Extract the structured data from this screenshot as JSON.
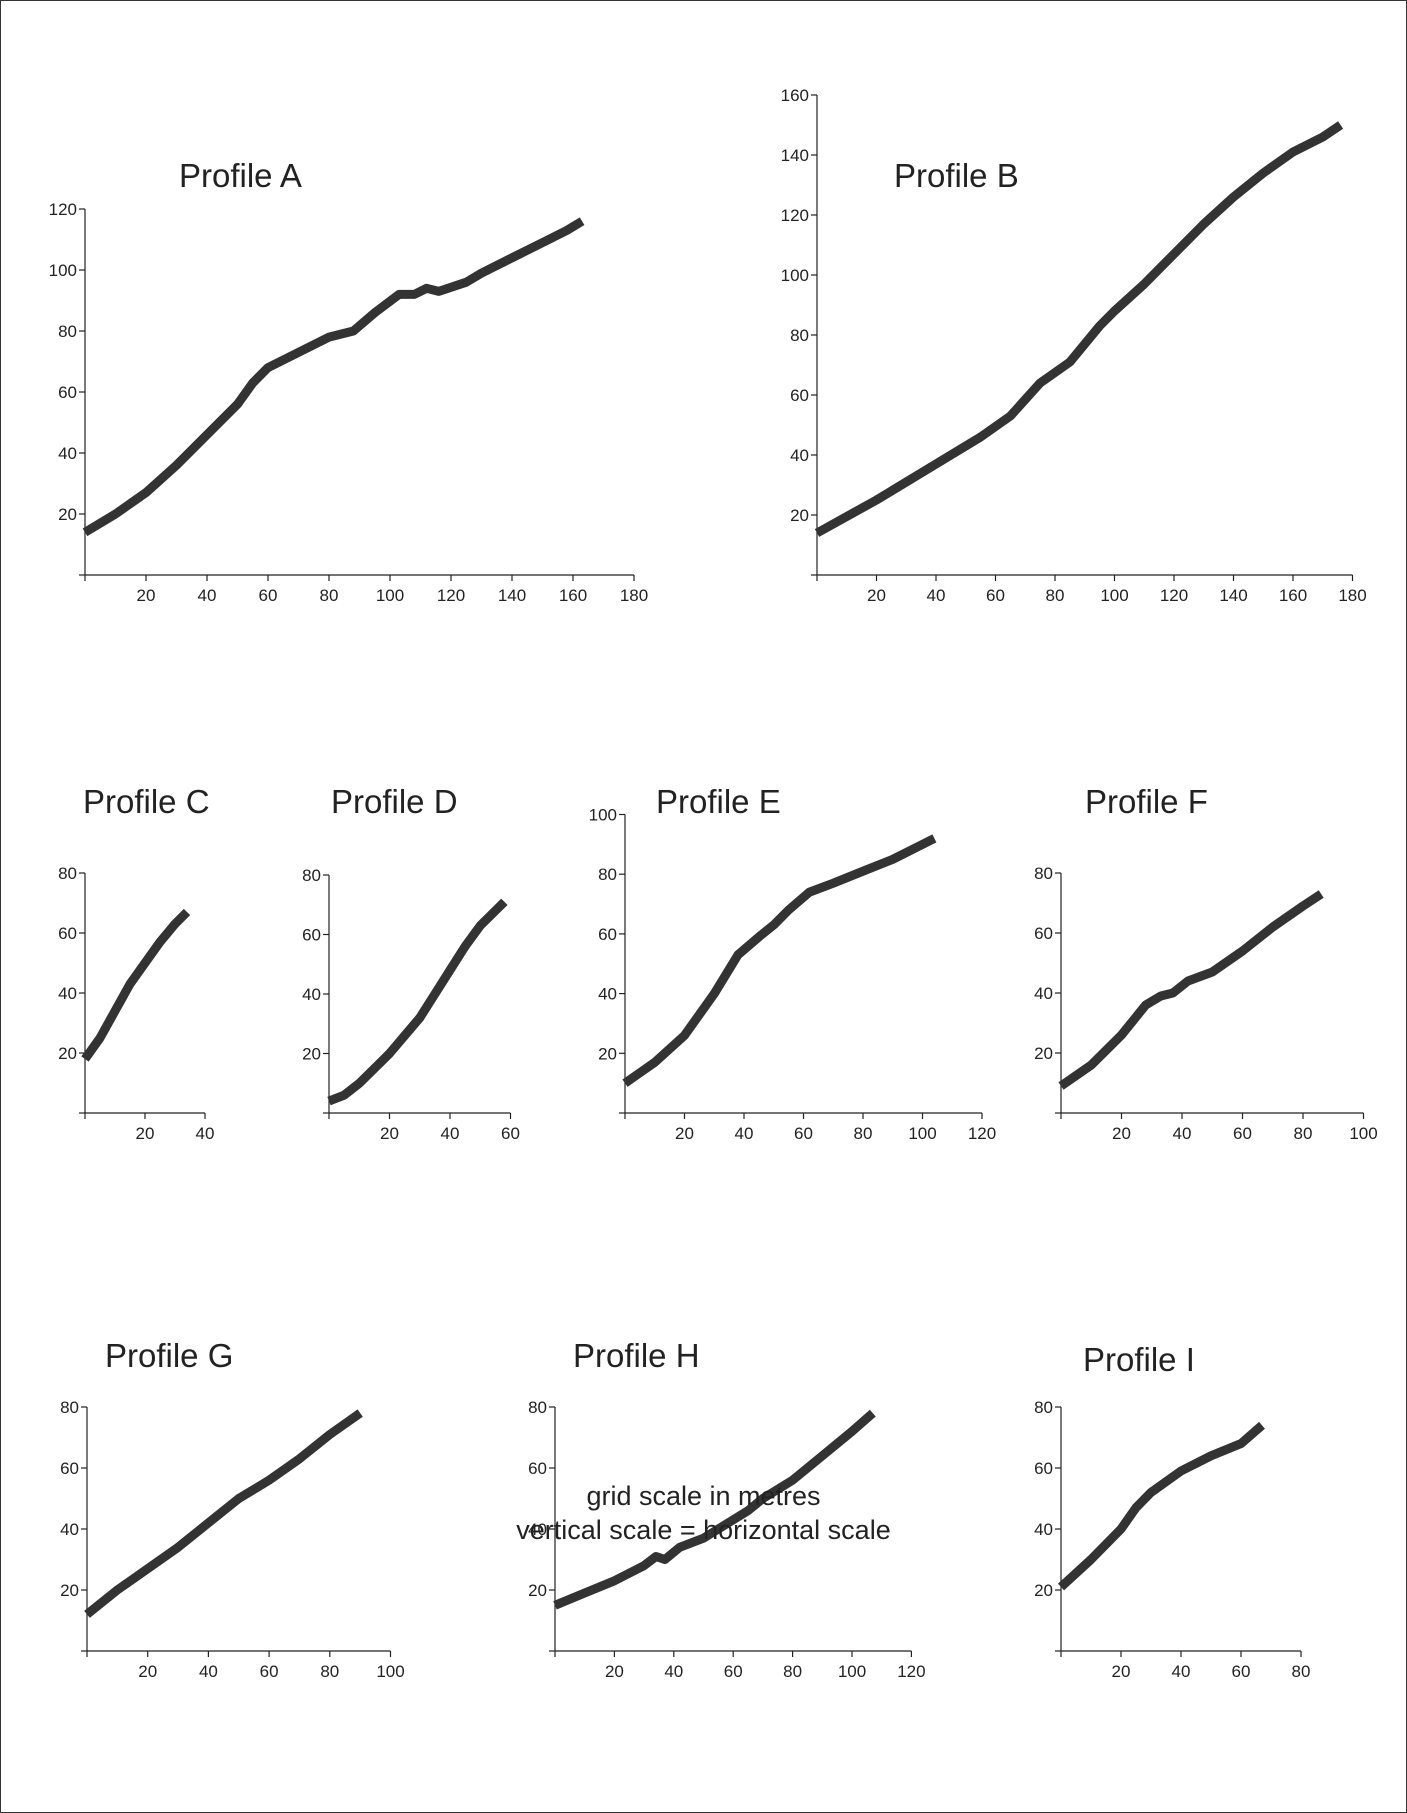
{
  "caption": {
    "line1": "grid scale in metres",
    "line2": "vertical scale = horizontal scale"
  },
  "chart_data": [
    {
      "type": "line",
      "title": "Profile A",
      "xlim": [
        0,
        180
      ],
      "ylim": [
        0,
        120
      ],
      "xticks": [
        20,
        40,
        60,
        80,
        100,
        120,
        140,
        160,
        180
      ],
      "yticks": [
        20,
        40,
        60,
        80,
        100,
        120
      ],
      "x": [
        0,
        10,
        20,
        30,
        40,
        50,
        55,
        60,
        70,
        80,
        88,
        95,
        103,
        108,
        112,
        116,
        125,
        130,
        140,
        150,
        158,
        163
      ],
      "y": [
        14,
        20,
        27,
        36,
        46,
        56,
        63,
        68,
        73,
        78,
        80,
        86,
        92,
        92,
        94,
        93,
        96,
        99,
        104,
        109,
        113,
        116
      ]
    },
    {
      "type": "line",
      "title": "Profile B",
      "xlim": [
        0,
        180
      ],
      "ylim": [
        0,
        160
      ],
      "xticks": [
        20,
        40,
        60,
        80,
        100,
        120,
        140,
        160,
        180
      ],
      "yticks": [
        20,
        40,
        60,
        80,
        100,
        120,
        140,
        160
      ],
      "x": [
        0,
        20,
        40,
        55,
        65,
        75,
        85,
        95,
        100,
        110,
        120,
        130,
        140,
        150,
        160,
        170,
        176
      ],
      "y": [
        14,
        25,
        37,
        46,
        53,
        64,
        71,
        83,
        88,
        97,
        107,
        117,
        126,
        134,
        141,
        146,
        150
      ]
    },
    {
      "type": "line",
      "title": "Profile C",
      "xlim": [
        0,
        40
      ],
      "ylim": [
        0,
        80
      ],
      "xticks": [
        20,
        40
      ],
      "yticks": [
        20,
        40,
        60,
        80
      ],
      "x": [
        0,
        5,
        10,
        15,
        20,
        25,
        30,
        34
      ],
      "y": [
        18,
        25,
        34,
        43,
        50,
        57,
        63,
        67
      ]
    },
    {
      "type": "line",
      "title": "Profile D",
      "xlim": [
        0,
        60
      ],
      "ylim": [
        0,
        80
      ],
      "xticks": [
        20,
        40,
        60
      ],
      "yticks": [
        20,
        40,
        60,
        80
      ],
      "x": [
        0,
        5,
        10,
        15,
        20,
        25,
        30,
        35,
        40,
        45,
        50,
        55,
        58
      ],
      "y": [
        4,
        6,
        10,
        15,
        20,
        26,
        32,
        40,
        48,
        56,
        63,
        68,
        71
      ]
    },
    {
      "type": "line",
      "title": "Profile E",
      "xlim": [
        0,
        120
      ],
      "ylim": [
        0,
        100
      ],
      "xticks": [
        20,
        40,
        60,
        80,
        100,
        120
      ],
      "yticks": [
        20,
        40,
        60,
        80,
        100
      ],
      "x": [
        0,
        10,
        20,
        30,
        38,
        45,
        50,
        55,
        62,
        70,
        80,
        90,
        100,
        104
      ],
      "y": [
        10,
        17,
        26,
        40,
        53,
        59,
        63,
        68,
        74,
        77,
        81,
        85,
        90,
        92
      ]
    },
    {
      "type": "line",
      "title": "Profile F",
      "xlim": [
        0,
        100
      ],
      "ylim": [
        0,
        80
      ],
      "xticks": [
        20,
        40,
        60,
        80,
        100
      ],
      "yticks": [
        20,
        40,
        60,
        80
      ],
      "x": [
        0,
        10,
        20,
        28,
        33,
        37,
        42,
        50,
        60,
        70,
        80,
        86
      ],
      "y": [
        9,
        16,
        26,
        36,
        39,
        40,
        44,
        47,
        54,
        62,
        69,
        73
      ]
    },
    {
      "type": "line",
      "title": "Profile G",
      "xlim": [
        0,
        100
      ],
      "ylim": [
        0,
        80
      ],
      "xticks": [
        20,
        40,
        60,
        80,
        100
      ],
      "yticks": [
        20,
        40,
        60,
        80
      ],
      "x": [
        0,
        10,
        20,
        30,
        40,
        50,
        60,
        70,
        80,
        90
      ],
      "y": [
        12,
        20,
        27,
        34,
        42,
        50,
        56,
        63,
        71,
        78
      ]
    },
    {
      "type": "line",
      "title": "Profile H",
      "xlim": [
        0,
        120
      ],
      "ylim": [
        0,
        80
      ],
      "xticks": [
        20,
        40,
        60,
        80,
        100,
        120
      ],
      "yticks": [
        20,
        40,
        60,
        80
      ],
      "x": [
        0,
        10,
        20,
        30,
        34,
        37,
        42,
        50,
        60,
        65,
        70,
        75,
        80,
        90,
        100,
        107
      ],
      "y": [
        15,
        19,
        23,
        28,
        31,
        30,
        34,
        37,
        43,
        46,
        50,
        53,
        56,
        64,
        72,
        78
      ]
    },
    {
      "type": "line",
      "title": "Profile I",
      "xlim": [
        0,
        80
      ],
      "ylim": [
        0,
        80
      ],
      "xticks": [
        20,
        40,
        60,
        80
      ],
      "yticks": [
        20,
        40,
        60,
        80
      ],
      "x": [
        0,
        10,
        20,
        25,
        30,
        40,
        50,
        60,
        67
      ],
      "y": [
        21,
        30,
        40,
        47,
        52,
        59,
        64,
        68,
        74
      ]
    }
  ]
}
